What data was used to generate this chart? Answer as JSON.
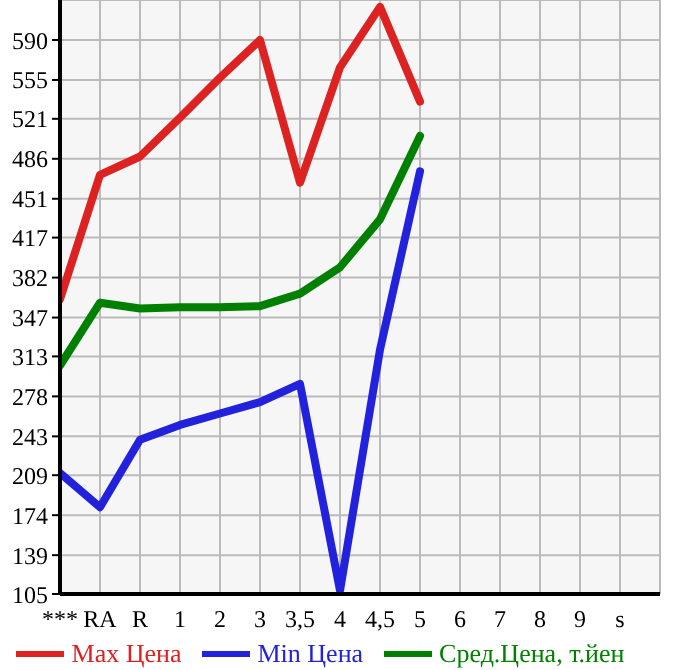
{
  "chart_data": {
    "type": "line",
    "categories": [
      "***",
      "RA",
      "R",
      "1",
      "2",
      "3",
      "3,5",
      "4",
      "4,5",
      "5",
      "6",
      "7",
      "8",
      "9",
      "s",
      null
    ],
    "series": [
      {
        "name": "Max Цена",
        "color": "#dd2222",
        "values": [
          363,
          472,
          488,
          522,
          557,
          590,
          465,
          566,
          619,
          536,
          null,
          null,
          null,
          null,
          null,
          null
        ]
      },
      {
        "name": "Min Цена",
        "color": "#2222dd",
        "values": [
          211,
          181,
          240,
          253,
          263,
          273,
          289,
          108,
          319,
          475,
          null,
          null,
          null,
          null,
          null,
          null
        ]
      },
      {
        "name": "Сред.Цена, т.йен",
        "color": "#008000",
        "values": [
          305,
          360,
          355,
          356,
          356,
          357,
          368,
          391,
          433,
          506,
          null,
          null,
          null,
          null,
          null,
          null
        ]
      }
    ],
    "ylim": [
      105,
      625
    ],
    "yticks": [
      105,
      139,
      174,
      209,
      243,
      278,
      313,
      347,
      382,
      417,
      451,
      486,
      521,
      555,
      590
    ],
    "grid": true,
    "legend": "bottom",
    "marker": "none",
    "line_style": "solid"
  }
}
